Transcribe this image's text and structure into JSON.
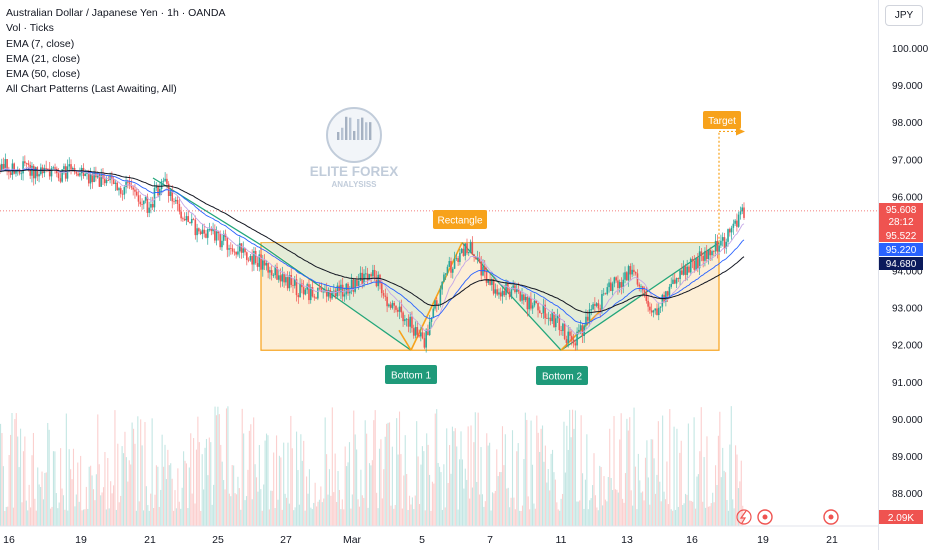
{
  "header": {
    "title": "Australian Dollar / Japanese Yen · 1h · OANDA",
    "indicators": [
      "Vol · Ticks",
      "EMA (7, close)",
      "EMA (21, close)",
      "EMA (50, close)",
      "All Chart Patterns (Last Awaiting, All)"
    ]
  },
  "currency_button": "JPY",
  "watermark": {
    "line1": "ELITE FOREX",
    "line2": "ANALYSISS"
  },
  "colors": {
    "up": "#26a69a",
    "down": "#ef5350",
    "ema": "#131722",
    "ema_fast": "#2962ff",
    "pattern": "#f7a21b",
    "pattern_fill": "#fce8c8",
    "triangle_fill": "#d8ebd8",
    "bottom_label": "#1f9a7a",
    "ema50_label": "#0b1a5c"
  },
  "chart_data": {
    "type": "candlestick",
    "symbol": "AUDJPY",
    "timeframe": "1h",
    "x_ticks": [
      "16",
      "19",
      "21",
      "25",
      "27",
      "Mar",
      "5",
      "7",
      "11",
      "13",
      "16",
      "19",
      "21"
    ],
    "y_ticks": [
      100.0,
      99.0,
      98.0,
      97.0,
      96.0,
      95.0,
      94.0,
      93.0,
      92.0,
      91.0,
      90.0,
      89.0,
      88.0
    ],
    "ylim": [
      87.3,
      100.8
    ],
    "price_path": [
      {
        "t": 0.0,
        "p": 96.85
      },
      {
        "t": 0.08,
        "p": 96.55
      },
      {
        "t": 0.1,
        "p": 96.7
      },
      {
        "t": 0.17,
        "p": 96.2
      },
      {
        "t": 0.2,
        "p": 95.75
      },
      {
        "t": 0.22,
        "p": 96.4
      },
      {
        "t": 0.25,
        "p": 95.3
      },
      {
        "t": 0.29,
        "p": 94.9
      },
      {
        "t": 0.33,
        "p": 94.5
      },
      {
        "t": 0.35,
        "p": 94.2
      },
      {
        "t": 0.4,
        "p": 93.5
      },
      {
        "t": 0.44,
        "p": 93.3
      },
      {
        "t": 0.48,
        "p": 93.6
      },
      {
        "t": 0.5,
        "p": 94.1
      },
      {
        "t": 0.52,
        "p": 93.1
      },
      {
        "t": 0.55,
        "p": 92.6
      },
      {
        "t": 0.57,
        "p": 92.0
      },
      {
        "t": 0.6,
        "p": 94.0
      },
      {
        "t": 0.63,
        "p": 94.7
      },
      {
        "t": 0.66,
        "p": 93.6
      },
      {
        "t": 0.69,
        "p": 93.4
      },
      {
        "t": 0.72,
        "p": 93.0
      },
      {
        "t": 0.75,
        "p": 92.6
      },
      {
        "t": 0.77,
        "p": 92.0
      },
      {
        "t": 0.8,
        "p": 93.0
      },
      {
        "t": 0.82,
        "p": 93.5
      },
      {
        "t": 0.85,
        "p": 94.0
      },
      {
        "t": 0.88,
        "p": 92.9
      },
      {
        "t": 0.91,
        "p": 93.8
      },
      {
        "t": 0.94,
        "p": 94.3
      },
      {
        "t": 0.97,
        "p": 94.7
      },
      {
        "t": 1.0,
        "p": 95.6
      }
    ],
    "ema": {
      "ema_7": {
        "end": 95.522
      },
      "ema_21": {
        "end": 95.22
      },
      "ema_50": {
        "end": 94.68
      }
    },
    "pattern": {
      "name": "Double Bottom",
      "rectangle_label": "Rectangle",
      "rectangle_top": 94.75,
      "rectangle_bottom": 91.85,
      "bottom1_label": "Bottom 1",
      "bottom1_price": 91.85,
      "bottom2_label": "Bottom 2",
      "bottom2_price": 91.85,
      "target_label": "Target",
      "target_price": 97.75
    },
    "price_labels": [
      {
        "value": "95.608",
        "sub": "28:12",
        "color": "#ef5350"
      },
      {
        "value": "95.522",
        "color": "#ef5350"
      },
      {
        "value": "95.220",
        "color": "#2962ff"
      },
      {
        "value": "94.680",
        "color": "#131722"
      }
    ],
    "volume_label": "2.09K",
    "current_price": 95.608
  }
}
